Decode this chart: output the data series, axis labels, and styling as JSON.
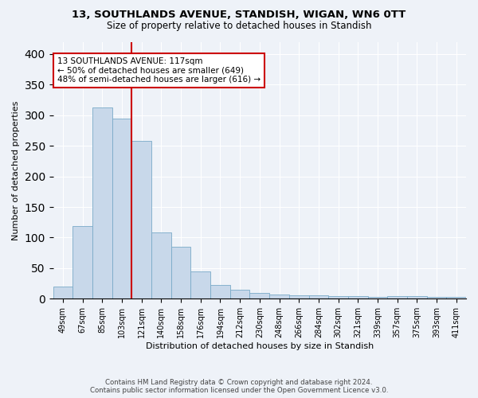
{
  "title1": "13, SOUTHLANDS AVENUE, STANDISH, WIGAN, WN6 0TT",
  "title2": "Size of property relative to detached houses in Standish",
  "xlabel": "Distribution of detached houses by size in Standish",
  "ylabel": "Number of detached properties",
  "categories": [
    "49sqm",
    "67sqm",
    "85sqm",
    "103sqm",
    "121sqm",
    "140sqm",
    "158sqm",
    "176sqm",
    "194sqm",
    "212sqm",
    "230sqm",
    "248sqm",
    "266sqm",
    "284sqm",
    "302sqm",
    "321sqm",
    "339sqm",
    "357sqm",
    "375sqm",
    "393sqm",
    "411sqm"
  ],
  "values": [
    20,
    119,
    313,
    294,
    258,
    109,
    85,
    45,
    22,
    15,
    10,
    7,
    6,
    6,
    5,
    4,
    3,
    4,
    4,
    3,
    3
  ],
  "bar_color": "#c8d8ea",
  "bar_edge_color": "#7aaac8",
  "vline_index": 4,
  "annotation_line1": "13 SOUTHLANDS AVENUE: 117sqm",
  "annotation_line2": "← 50% of detached houses are smaller (649)",
  "annotation_line3": "48% of semi-detached houses are larger (616) →",
  "annotation_box_color": "#ffffff",
  "annotation_box_edge": "#cc0000",
  "vline_color": "#cc0000",
  "footer1": "Contains HM Land Registry data © Crown copyright and database right 2024.",
  "footer2": "Contains public sector information licensed under the Open Government Licence v3.0.",
  "ylim": [
    0,
    420
  ],
  "background_color": "#eef2f8"
}
